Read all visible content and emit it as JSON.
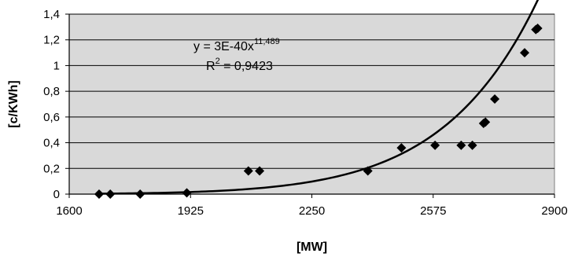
{
  "chart_data": {
    "type": "scatter",
    "xlabel": "[MW]",
    "ylabel": "[c/KWh]",
    "xlim": [
      1600,
      2900
    ],
    "ylim": [
      0,
      1.4
    ],
    "x_ticks": [
      1600,
      1925,
      2250,
      2575,
      2900
    ],
    "x_tick_labels": [
      "1600",
      "1925",
      "2250",
      "2575",
      "2900"
    ],
    "y_ticks": [
      0,
      0.2,
      0.4,
      0.6,
      0.8,
      1.0,
      1.2,
      1.4
    ],
    "y_tick_labels": [
      "0",
      "0,2",
      "0,4",
      "0,6",
      "0,8",
      "1",
      "1,2",
      "1,4"
    ],
    "grid": "horizontal",
    "background": "#d9d9d9",
    "marker_color": "#000000",
    "series": [
      {
        "points": [
          {
            "x": 1680,
            "y": 0.0
          },
          {
            "x": 1710,
            "y": 0.0
          },
          {
            "x": 1790,
            "y": 0.0
          },
          {
            "x": 1915,
            "y": 0.01
          },
          {
            "x": 2080,
            "y": 0.18
          },
          {
            "x": 2110,
            "y": 0.18
          },
          {
            "x": 2400,
            "y": 0.18
          },
          {
            "x": 2490,
            "y": 0.36
          },
          {
            "x": 2580,
            "y": 0.38
          },
          {
            "x": 2650,
            "y": 0.38
          },
          {
            "x": 2680,
            "y": 0.38
          },
          {
            "x": 2710,
            "y": 0.55
          },
          {
            "x": 2715,
            "y": 0.56
          },
          {
            "x": 2740,
            "y": 0.74
          },
          {
            "x": 2820,
            "y": 1.1
          },
          {
            "x": 2850,
            "y": 1.28
          },
          {
            "x": 2855,
            "y": 1.29
          }
        ]
      }
    ],
    "trendline": {
      "type": "power",
      "coefficient": 3e-40,
      "exponent": 11.489,
      "x_range": [
        1680,
        2860
      ]
    },
    "annotation": {
      "eq_prefix": "y = 3E-40x",
      "eq_exponent": "11,489",
      "r2_prefix": "R",
      "r2_sup": "2",
      "r2_suffix": " = 0,9423"
    }
  }
}
